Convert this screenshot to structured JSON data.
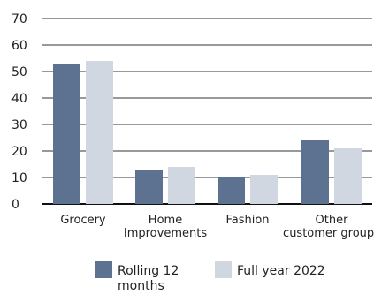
{
  "chart_data": {
    "type": "bar",
    "categories": [
      [
        "Grocery"
      ],
      [
        "Home",
        "Improvements"
      ],
      [
        "Fashion"
      ],
      [
        "Other",
        "customer groups"
      ]
    ],
    "series": [
      {
        "name": "Rolling 12 months",
        "values": [
          53,
          13,
          10,
          24
        ],
        "color": "#5d7290"
      },
      {
        "name": "Full year 2022",
        "values": [
          54,
          14,
          11,
          21
        ],
        "color": "#d1d7e0"
      }
    ],
    "legend_lines": [
      [
        "Rolling 12",
        "months"
      ],
      [
        "Full year 2022"
      ]
    ],
    "ylim": [
      0,
      70
    ],
    "yticks": [
      0,
      10,
      20,
      30,
      40,
      50,
      60,
      70
    ],
    "grid": true,
    "legend_position": "bottom"
  }
}
